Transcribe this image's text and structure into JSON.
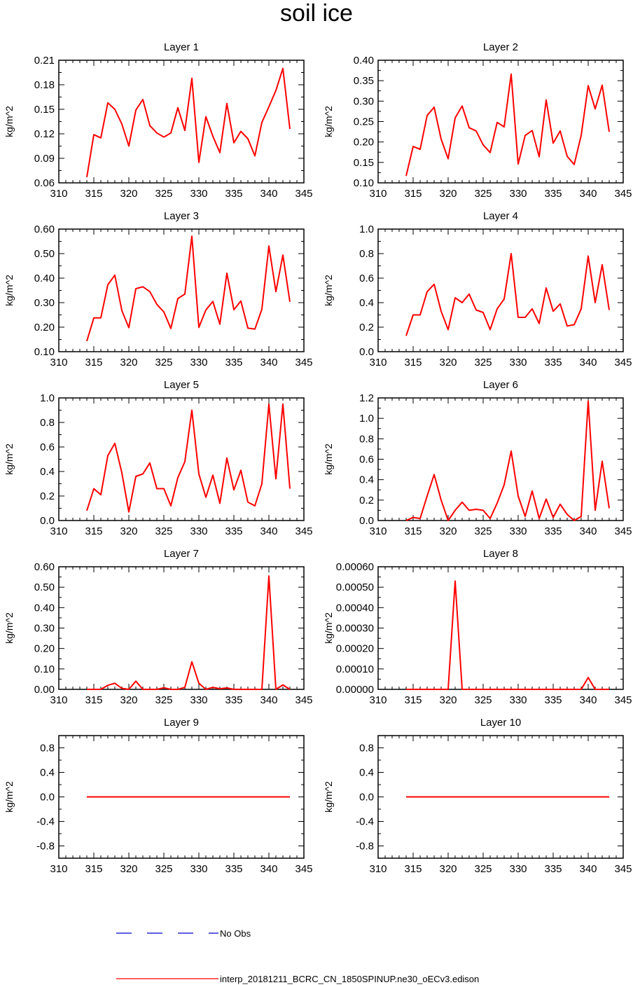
{
  "page_title": "soil ice",
  "colors": {
    "model": "#ff0000",
    "obs": "#0000cc",
    "axis": "#000000"
  },
  "chart_data": [
    {
      "type": "line",
      "title": "Layer 1",
      "ylabel": "kg/m^2",
      "xlim": [
        310,
        345
      ],
      "xticks": [
        310,
        315,
        320,
        325,
        330,
        335,
        340,
        345
      ],
      "ylim": [
        0.06,
        0.21
      ],
      "yticks": [
        "0.06",
        "0.09",
        "0.12",
        "0.15",
        "0.18",
        "0.21"
      ],
      "x": [
        314,
        315,
        316,
        317,
        318,
        319,
        320,
        321,
        322,
        323,
        324,
        325,
        326,
        327,
        328,
        329,
        330,
        331,
        332,
        333,
        334,
        335,
        336,
        337,
        338,
        339,
        340,
        341,
        342,
        343
      ],
      "series": [
        {
          "name": "interp_20181211_BCRC_CN_1850SPINUP.ne30_oECv3.edison",
          "values": [
            0.067,
            0.119,
            0.115,
            0.158,
            0.15,
            0.132,
            0.105,
            0.149,
            0.162,
            0.13,
            0.121,
            0.116,
            0.121,
            0.152,
            0.124,
            0.188,
            0.085,
            0.141,
            0.117,
            0.097,
            0.157,
            0.109,
            0.123,
            0.114,
            0.093,
            0.134,
            0.153,
            0.173,
            0.2,
            0.126
          ]
        }
      ]
    },
    {
      "type": "line",
      "title": "Layer 2",
      "ylabel": "kg/m^2",
      "xlim": [
        310,
        345
      ],
      "xticks": [
        310,
        315,
        320,
        325,
        330,
        335,
        340,
        345
      ],
      "ylim": [
        0.1,
        0.4
      ],
      "yticks": [
        "0.10",
        "0.15",
        "0.20",
        "0.25",
        "0.30",
        "0.35",
        "0.40"
      ],
      "x": [
        314,
        315,
        316,
        317,
        318,
        319,
        320,
        321,
        322,
        323,
        324,
        325,
        326,
        327,
        328,
        329,
        330,
        331,
        332,
        333,
        334,
        335,
        336,
        337,
        338,
        339,
        340,
        341,
        342,
        343
      ],
      "series": [
        {
          "name": "interp_20181211_BCRC_CN_1850SPINUP.ne30_oECv3.edison",
          "values": [
            0.117,
            0.189,
            0.182,
            0.265,
            0.285,
            0.207,
            0.159,
            0.259,
            0.288,
            0.235,
            0.227,
            0.193,
            0.174,
            0.248,
            0.237,
            0.366,
            0.146,
            0.216,
            0.228,
            0.164,
            0.303,
            0.197,
            0.227,
            0.165,
            0.145,
            0.216,
            0.338,
            0.281,
            0.339,
            0.225
          ]
        }
      ]
    },
    {
      "type": "line",
      "title": "Layer 3",
      "ylabel": "kg/m^2",
      "xlim": [
        310,
        345
      ],
      "xticks": [
        310,
        315,
        320,
        325,
        330,
        335,
        340,
        345
      ],
      "ylim": [
        0.1,
        0.6
      ],
      "yticks": [
        "0.10",
        "0.20",
        "0.30",
        "0.40",
        "0.50",
        "0.60"
      ],
      "x": [
        314,
        315,
        316,
        317,
        318,
        319,
        320,
        321,
        322,
        323,
        324,
        325,
        326,
        327,
        328,
        329,
        330,
        331,
        332,
        333,
        334,
        335,
        336,
        337,
        338,
        339,
        340,
        341,
        342,
        343
      ],
      "series": [
        {
          "name": "interp_20181211_BCRC_CN_1850SPINUP.ne30_oECv3.edison",
          "values": [
            0.143,
            0.238,
            0.238,
            0.373,
            0.412,
            0.268,
            0.198,
            0.357,
            0.365,
            0.345,
            0.293,
            0.262,
            0.195,
            0.317,
            0.335,
            0.571,
            0.199,
            0.27,
            0.305,
            0.212,
            0.42,
            0.271,
            0.307,
            0.196,
            0.192,
            0.273,
            0.531,
            0.345,
            0.494,
            0.303
          ]
        }
      ]
    },
    {
      "type": "line",
      "title": "Layer 4",
      "ylabel": "kg/m^2",
      "xlim": [
        310,
        345
      ],
      "xticks": [
        310,
        315,
        320,
        325,
        330,
        335,
        340,
        345
      ],
      "ylim": [
        0.0,
        1.0
      ],
      "yticks": [
        "0.0",
        "0.2",
        "0.4",
        "0.6",
        "0.8",
        "1.0"
      ],
      "x": [
        314,
        315,
        316,
        317,
        318,
        319,
        320,
        321,
        322,
        323,
        324,
        325,
        326,
        327,
        328,
        329,
        330,
        331,
        332,
        333,
        334,
        335,
        336,
        337,
        338,
        339,
        340,
        341,
        342,
        343
      ],
      "series": [
        {
          "name": "interp_20181211_BCRC_CN_1850SPINUP.ne30_oECv3.edison",
          "values": [
            0.13,
            0.3,
            0.3,
            0.49,
            0.55,
            0.33,
            0.18,
            0.44,
            0.4,
            0.47,
            0.34,
            0.32,
            0.18,
            0.35,
            0.43,
            0.8,
            0.28,
            0.28,
            0.35,
            0.23,
            0.52,
            0.33,
            0.39,
            0.21,
            0.22,
            0.35,
            0.78,
            0.4,
            0.71,
            0.34
          ]
        }
      ]
    },
    {
      "type": "line",
      "title": "Layer 5",
      "ylabel": "kg/m^2",
      "xlim": [
        310,
        345
      ],
      "xticks": [
        310,
        315,
        320,
        325,
        330,
        335,
        340,
        345
      ],
      "ylim": [
        0.0,
        1.0
      ],
      "yticks": [
        "0.0",
        "0.2",
        "0.4",
        "0.6",
        "0.8",
        "1.0"
      ],
      "x": [
        314,
        315,
        316,
        317,
        318,
        319,
        320,
        321,
        322,
        323,
        324,
        325,
        326,
        327,
        328,
        329,
        330,
        331,
        332,
        333,
        334,
        335,
        336,
        337,
        338,
        339,
        340,
        341,
        342,
        343
      ],
      "series": [
        {
          "name": "interp_20181211_BCRC_CN_1850SPINUP.ne30_oECv3.edison",
          "values": [
            0.08,
            0.26,
            0.21,
            0.53,
            0.63,
            0.39,
            0.07,
            0.36,
            0.38,
            0.47,
            0.26,
            0.26,
            0.12,
            0.35,
            0.48,
            0.9,
            0.38,
            0.19,
            0.37,
            0.14,
            0.51,
            0.25,
            0.41,
            0.15,
            0.12,
            0.3,
            0.95,
            0.34,
            0.95,
            0.26
          ]
        }
      ]
    },
    {
      "type": "line",
      "title": "Layer 6",
      "ylabel": "kg/m^2",
      "xlim": [
        310,
        345
      ],
      "xticks": [
        310,
        315,
        320,
        325,
        330,
        335,
        340,
        345
      ],
      "ylim": [
        0.0,
        1.2
      ],
      "yticks": [
        "0.0",
        "0.2",
        "0.4",
        "0.6",
        "0.8",
        "1.0",
        "1.2"
      ],
      "x": [
        314,
        315,
        316,
        317,
        318,
        319,
        320,
        321,
        322,
        323,
        324,
        325,
        326,
        327,
        328,
        329,
        330,
        331,
        332,
        333,
        334,
        335,
        336,
        337,
        338,
        339,
        340,
        341,
        342,
        343
      ],
      "series": [
        {
          "name": "interp_20181211_BCRC_CN_1850SPINUP.ne30_oECv3.edison",
          "values": [
            0.0,
            0.03,
            0.02,
            0.24,
            0.45,
            0.2,
            0.0,
            0.1,
            0.18,
            0.1,
            0.11,
            0.1,
            0.02,
            0.17,
            0.35,
            0.68,
            0.24,
            0.04,
            0.29,
            0.02,
            0.21,
            0.03,
            0.16,
            0.06,
            0.0,
            0.04,
            1.17,
            0.1,
            0.58,
            0.12
          ]
        }
      ]
    },
    {
      "type": "line",
      "title": "Layer 7",
      "ylabel": "kg/m^2",
      "xlim": [
        310,
        345
      ],
      "xticks": [
        310,
        315,
        320,
        325,
        330,
        335,
        340,
        345
      ],
      "ylim": [
        0.0,
        0.6
      ],
      "yticks": [
        "0.00",
        "0.10",
        "0.20",
        "0.30",
        "0.40",
        "0.50",
        "0.60"
      ],
      "x": [
        314,
        315,
        316,
        317,
        318,
        319,
        320,
        321,
        322,
        323,
        324,
        325,
        326,
        327,
        328,
        329,
        330,
        331,
        332,
        333,
        334,
        335,
        336,
        337,
        338,
        339,
        340,
        341,
        342,
        343
      ],
      "series": [
        {
          "name": "interp_20181211_BCRC_CN_1850SPINUP.ne30_oECv3.edison",
          "values": [
            0.0,
            0.0,
            0.0,
            0.02,
            0.03,
            0.005,
            0.0,
            0.04,
            0.0,
            0.0,
            0.0,
            0.008,
            0.0,
            0.0,
            0.01,
            0.135,
            0.03,
            0.0,
            0.01,
            0.003,
            0.007,
            0.0,
            0.0,
            0.0,
            0.0,
            0.0,
            0.555,
            0.0,
            0.022,
            0.0
          ]
        }
      ]
    },
    {
      "type": "line",
      "title": "Layer 8",
      "ylabel": "kg/m^2",
      "xlim": [
        310,
        345
      ],
      "xticks": [
        310,
        315,
        320,
        325,
        330,
        335,
        340,
        345
      ],
      "ylim": [
        0.0,
        0.0006
      ],
      "yticks": [
        "0.00000",
        "0.00010",
        "0.00020",
        "0.00030",
        "0.00040",
        "0.00050",
        "0.00060"
      ],
      "x": [
        314,
        315,
        316,
        317,
        318,
        319,
        320,
        321,
        322,
        323,
        324,
        325,
        326,
        327,
        328,
        329,
        330,
        331,
        332,
        333,
        334,
        335,
        336,
        337,
        338,
        339,
        340,
        341,
        342,
        343
      ],
      "series": [
        {
          "name": "interp_20181211_BCRC_CN_1850SPINUP.ne30_oECv3.edison",
          "values": [
            0,
            0,
            0,
            0,
            0,
            0,
            0,
            0.00053,
            0,
            0,
            0,
            0,
            0,
            0,
            0,
            0,
            0,
            0,
            0,
            0,
            0,
            0,
            0,
            0,
            0,
            0,
            5.8e-05,
            0,
            0,
            0
          ]
        }
      ]
    },
    {
      "type": "line",
      "title": "Layer 9",
      "ylabel": "kg/m^2",
      "xlim": [
        310,
        345
      ],
      "xticks": [
        310,
        315,
        320,
        325,
        330,
        335,
        340,
        345
      ],
      "ylim": [
        -1.0,
        1.0
      ],
      "yticks": [
        "-0.8",
        "-0.4",
        "0.0",
        "0.4",
        "0.8"
      ],
      "x": [
        314,
        315,
        316,
        317,
        318,
        319,
        320,
        321,
        322,
        323,
        324,
        325,
        326,
        327,
        328,
        329,
        330,
        331,
        332,
        333,
        334,
        335,
        336,
        337,
        338,
        339,
        340,
        341,
        342,
        343
      ],
      "series": [
        {
          "name": "interp_20181211_BCRC_CN_1850SPINUP.ne30_oECv3.edison",
          "values": [
            0,
            0,
            0,
            0,
            0,
            0,
            0,
            0,
            0,
            0,
            0,
            0,
            0,
            0,
            0,
            0,
            0,
            0,
            0,
            0,
            0,
            0,
            0,
            0,
            0,
            0,
            0,
            0,
            0,
            0
          ]
        }
      ]
    },
    {
      "type": "line",
      "title": "Layer 10",
      "ylabel": "kg/m^2",
      "xlim": [
        310,
        345
      ],
      "xticks": [
        310,
        315,
        320,
        325,
        330,
        335,
        340,
        345
      ],
      "ylim": [
        -1.0,
        1.0
      ],
      "yticks": [
        "-0.8",
        "-0.4",
        "0.0",
        "0.4",
        "0.8"
      ],
      "x": [
        314,
        315,
        316,
        317,
        318,
        319,
        320,
        321,
        322,
        323,
        324,
        325,
        326,
        327,
        328,
        329,
        330,
        331,
        332,
        333,
        334,
        335,
        336,
        337,
        338,
        339,
        340,
        341,
        342,
        343
      ],
      "series": [
        {
          "name": "interp_20181211_BCRC_CN_1850SPINUP.ne30_oECv3.edison",
          "values": [
            0,
            0,
            0,
            0,
            0,
            0,
            0,
            0,
            0,
            0,
            0,
            0,
            0,
            0,
            0,
            0,
            0,
            0,
            0,
            0,
            0,
            0,
            0,
            0,
            0,
            0,
            0,
            0,
            0,
            0
          ]
        }
      ]
    }
  ],
  "legend": [
    {
      "label": "No Obs",
      "style": "dashed",
      "color": "#0000cc"
    },
    {
      "label": "interp_20181211_BCRC_CN_1850SPINUP.ne30_oECv3.edison",
      "style": "solid",
      "color": "#ff0000"
    }
  ]
}
